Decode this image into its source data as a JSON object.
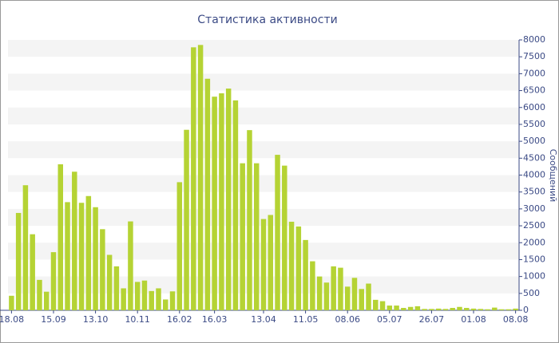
{
  "chart_data": {
    "type": "bar",
    "title": "Статистика активности",
    "y_label": "Сообщений",
    "categories": [
      "18.08",
      null,
      null,
      null,
      null,
      null,
      "15.09",
      null,
      null,
      null,
      null,
      null,
      "13.10",
      null,
      null,
      null,
      null,
      null,
      "10.11",
      null,
      null,
      null,
      null,
      null,
      "16.02",
      null,
      null,
      null,
      null,
      "16.03",
      null,
      null,
      null,
      null,
      null,
      null,
      "13.04",
      null,
      null,
      null,
      null,
      null,
      "11.05",
      null,
      null,
      null,
      null,
      null,
      "08.06",
      null,
      null,
      null,
      null,
      null,
      "05.07",
      null,
      null,
      null,
      null,
      null,
      "26.07",
      null,
      null,
      null,
      null,
      null,
      "01.08",
      null,
      null,
      null,
      null,
      null,
      "08.08"
    ],
    "values": [
      430,
      2880,
      3700,
      2250,
      900,
      550,
      1720,
      4320,
      3200,
      4100,
      3180,
      3380,
      3050,
      2400,
      1640,
      1300,
      650,
      2630,
      840,
      880,
      570,
      650,
      320,
      560,
      3790,
      5340,
      7780,
      7850,
      6850,
      6320,
      6420,
      6560,
      6210,
      4350,
      5330,
      4350,
      2700,
      2820,
      4600,
      4280,
      2620,
      2480,
      2080,
      1450,
      1000,
      820,
      1300,
      1260,
      700,
      960,
      630,
      790,
      310,
      270,
      140,
      140,
      70,
      100,
      120,
      40,
      40,
      50,
      40,
      70,
      100,
      70,
      50,
      40,
      30,
      80,
      30,
      30,
      50
    ],
    "color": "#b5d334",
    "ylim": [
      0,
      8000
    ],
    "yticks": [
      0,
      500,
      1000,
      1500,
      2000,
      2500,
      3000,
      3500,
      4000,
      4500,
      5000,
      5500,
      6000,
      6500,
      7000,
      7500,
      8000
    ],
    "grid": true
  }
}
